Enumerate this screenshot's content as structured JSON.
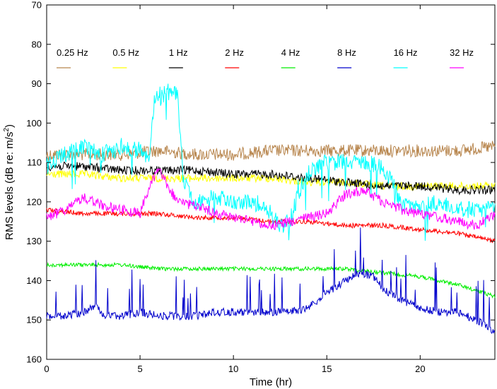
{
  "chart_data": {
    "type": "line",
    "title": "",
    "xlabel": "Time (hr)",
    "ylabel_main": "RMS levels (dB re: m/s",
    "ylabel_sup": "2",
    "ylabel_end": ")",
    "xlim": [
      0,
      24
    ],
    "ylim": [
      70,
      160
    ],
    "y_inverted": true,
    "xticks": [
      0,
      5,
      10,
      15,
      20
    ],
    "xtick_labels": [
      "0",
      "5",
      "10",
      "15",
      "20"
    ],
    "yticks": [
      70,
      80,
      90,
      100,
      110,
      120,
      130,
      140,
      150,
      160
    ],
    "ytick_labels": [
      "70",
      "80",
      "90",
      "100",
      "110",
      "120",
      "130",
      "140",
      "150",
      "160"
    ],
    "grid": false,
    "legend_position": "top",
    "series": [
      {
        "name": "0.25 Hz",
        "color": "#b8864e",
        "x": [
          0,
          2,
          4,
          6,
          8,
          10,
          12,
          14,
          16,
          18,
          20,
          22,
          24
        ],
        "y": [
          108,
          108,
          108,
          107,
          108,
          108,
          107,
          107,
          107,
          107,
          107,
          107,
          106
        ]
      },
      {
        "name": "0.5 Hz",
        "color": "#ffff00",
        "x": [
          0,
          2,
          4,
          6,
          8,
          10,
          12,
          14,
          16,
          18,
          20,
          22,
          24
        ],
        "y": [
          113,
          113,
          114,
          114,
          114,
          114,
          114,
          115,
          115,
          116,
          116,
          116,
          116
        ]
      },
      {
        "name": "1 Hz",
        "color": "#000000",
        "x": [
          0,
          2,
          4,
          6,
          8,
          10,
          12,
          14,
          16,
          18,
          20,
          22,
          24
        ],
        "y": [
          111,
          111,
          112,
          112,
          112,
          113,
          113,
          114,
          115,
          116,
          116,
          117,
          117
        ]
      },
      {
        "name": "2 Hz",
        "color": "#ff0000",
        "x": [
          0,
          2,
          4,
          6,
          8,
          10,
          12,
          14,
          16,
          18,
          20,
          22,
          24
        ],
        "y": [
          122,
          123,
          123,
          123,
          124,
          124,
          125,
          125,
          126,
          126,
          127,
          128,
          130
        ]
      },
      {
        "name": "4 Hz",
        "color": "#00ee00",
        "x": [
          0,
          2,
          4,
          6,
          8,
          10,
          12,
          14,
          16,
          18,
          20,
          22,
          24
        ],
        "y": [
          136,
          136,
          136,
          137,
          137,
          137,
          137,
          137,
          137,
          138,
          139,
          141,
          144
        ]
      },
      {
        "name": "8 Hz",
        "color": "#0000cc",
        "x": [
          0,
          1,
          2,
          2.7,
          3,
          4,
          5,
          6,
          7,
          8,
          9,
          10,
          11,
          12,
          13,
          14,
          15,
          16,
          16.8,
          17.5,
          18,
          19,
          20,
          21,
          22,
          23,
          24
        ],
        "y": [
          149,
          149,
          148,
          146,
          149,
          149,
          148,
          149,
          149,
          149,
          148,
          148,
          148,
          148,
          148,
          147,
          143,
          140,
          138,
          139,
          142,
          145,
          147,
          148,
          148,
          150,
          153
        ]
      },
      {
        "name": "16 Hz",
        "color": "#00ffff",
        "x": [
          0,
          1,
          2,
          3,
          4,
          5,
          5.5,
          5.8,
          6,
          6.5,
          7,
          7.3,
          7.6,
          8,
          9,
          10,
          11,
          11.5,
          12,
          12.5,
          13,
          13.5,
          14,
          15,
          16,
          17,
          18,
          18.5,
          19,
          20,
          21,
          22,
          23,
          24
        ],
        "y": [
          111,
          108,
          106,
          108,
          106,
          107,
          109,
          93,
          94,
          92,
          93,
          113,
          118,
          120,
          119,
          120,
          120,
          121,
          123,
          126,
          125,
          118,
          113,
          110,
          110,
          110,
          111,
          115,
          121,
          121,
          120,
          122,
          122,
          122
        ]
      },
      {
        "name": "32 Hz",
        "color": "#ff00ff",
        "x": [
          0,
          1,
          2,
          3,
          4,
          5,
          5.5,
          6,
          7,
          8,
          9,
          10,
          11,
          12,
          13,
          14,
          15,
          16,
          17,
          18,
          19,
          20,
          21,
          22,
          23,
          24
        ],
        "y": [
          124,
          122,
          119,
          121,
          122,
          123,
          116,
          112,
          120,
          121,
          123,
          124,
          125,
          126,
          125,
          124,
          123,
          118,
          117,
          120,
          122,
          123,
          124,
          125,
          126,
          123
        ]
      }
    ]
  }
}
